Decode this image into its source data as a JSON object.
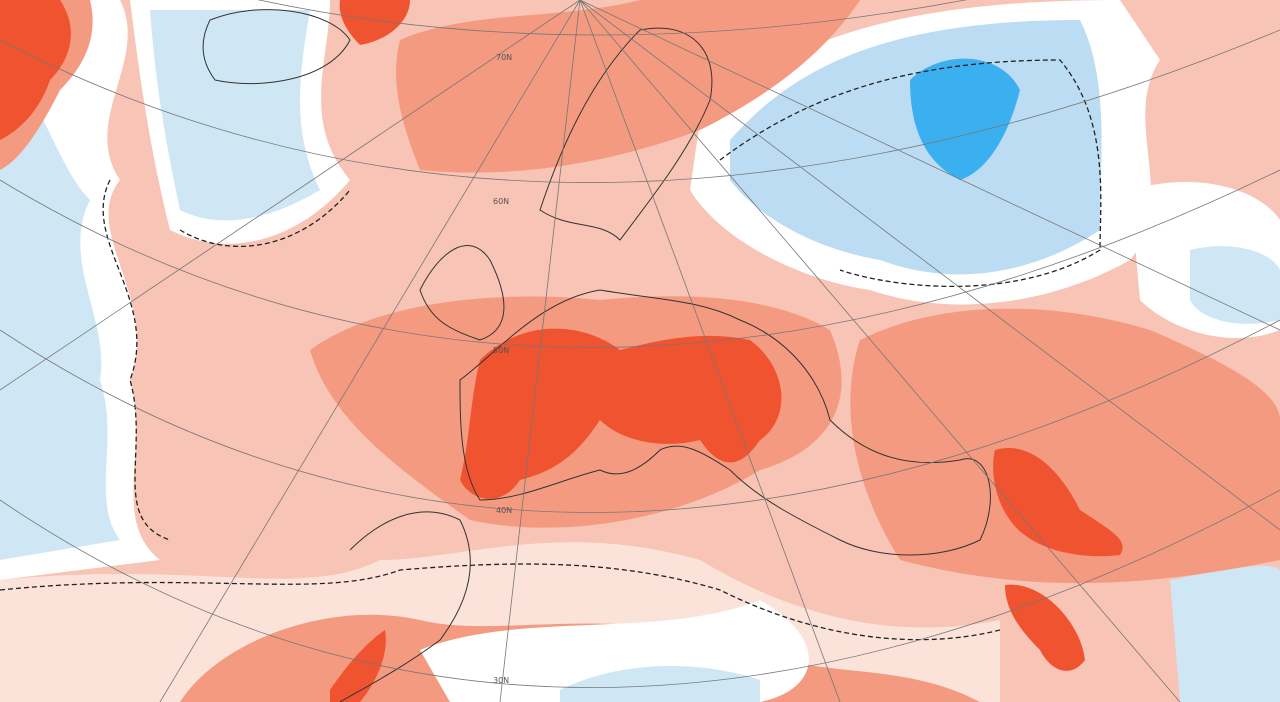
{
  "map": {
    "latitude_labels": [
      "70N",
      "60N",
      "50N",
      "40N",
      "30N"
    ]
  }
}
